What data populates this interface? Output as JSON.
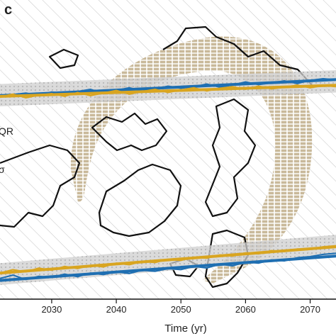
{
  "figure": {
    "panel_label": "c",
    "legend_fragments": [
      "QR",
      "σ"
    ]
  },
  "colors": {
    "blue": "#1f6fb2",
    "gold": "#d9a520",
    "band_gray": "#cfcfcf",
    "stipple": "#bdbdbd",
    "map_fill": "#c9b99a",
    "hatch": "#c8c8c8",
    "coast": "#111111"
  },
  "chart_data": {
    "type": "line",
    "xlabel": "Time (yr)",
    "ylabel": "",
    "ticks": [
      "2030",
      "2040",
      "2050",
      "2060",
      "2070"
    ],
    "tick_values": [
      2030,
      2040,
      2050,
      2060,
      2070
    ],
    "xlim": [
      2022,
      2074
    ],
    "years": [
      2022,
      2024,
      2026,
      2028,
      2030,
      2032,
      2034,
      2036,
      2038,
      2040,
      2042,
      2044,
      2046,
      2048,
      2050,
      2052,
      2054,
      2056,
      2058,
      2060,
      2062,
      2064,
      2066,
      2068,
      2070,
      2072,
      2074
    ],
    "panels": [
      {
        "id": "upper",
        "ylim": [
          0,
          1
        ],
        "series": [
          {
            "color_key": "blue",
            "values": [
              0.4,
              0.42,
              0.45,
              0.41,
              0.47,
              0.44,
              0.48,
              0.52,
              0.45,
              0.5,
              0.55,
              0.49,
              0.53,
              0.58,
              0.54,
              0.57,
              0.62,
              0.56,
              0.6,
              0.66,
              0.61,
              0.64,
              0.68,
              0.63,
              0.69,
              0.72,
              0.7
            ]
          },
          {
            "color_key": "gold",
            "values": [
              0.38,
              0.43,
              0.36,
              0.41,
              0.44,
              0.39,
              0.46,
              0.4,
              0.45,
              0.5,
              0.43,
              0.48,
              0.52,
              0.46,
              0.51,
              0.55,
              0.49,
              0.54,
              0.57,
              0.52,
              0.58,
              0.53,
              0.56,
              0.6,
              0.55,
              0.59,
              0.57
            ]
          }
        ],
        "band_low": [
          0.2,
          0.21,
          0.22,
          0.23,
          0.24,
          0.25,
          0.26,
          0.27,
          0.28,
          0.29,
          0.3,
          0.31,
          0.32,
          0.33,
          0.34,
          0.35,
          0.36,
          0.37,
          0.38,
          0.39,
          0.4,
          0.41,
          0.42,
          0.43,
          0.44,
          0.45,
          0.46
        ],
        "band_high": [
          0.62,
          0.63,
          0.64,
          0.65,
          0.66,
          0.67,
          0.68,
          0.69,
          0.7,
          0.71,
          0.72,
          0.73,
          0.74,
          0.75,
          0.76,
          0.77,
          0.78,
          0.79,
          0.8,
          0.81,
          0.82,
          0.83,
          0.84,
          0.85,
          0.86,
          0.87,
          0.88
        ]
      },
      {
        "id": "lower",
        "ylim": [
          0,
          1
        ],
        "series": [
          {
            "color_key": "blue",
            "values": [
              0.12,
              0.18,
              0.1,
              0.16,
              0.14,
              0.2,
              0.15,
              0.22,
              0.19,
              0.24,
              0.21,
              0.27,
              0.25,
              0.3,
              0.28,
              0.34,
              0.31,
              0.38,
              0.35,
              0.42,
              0.4,
              0.46,
              0.44,
              0.5,
              0.52,
              0.56,
              0.58
            ]
          },
          {
            "color_key": "gold",
            "values": [
              0.22,
              0.28,
              0.24,
              0.31,
              0.27,
              0.34,
              0.3,
              0.36,
              0.33,
              0.4,
              0.37,
              0.43,
              0.41,
              0.47,
              0.45,
              0.51,
              0.49,
              0.55,
              0.53,
              0.59,
              0.57,
              0.63,
              0.61,
              0.66,
              0.65,
              0.7,
              0.72
            ]
          }
        ],
        "band_low": [
          0.0,
          0.02,
          0.04,
          0.06,
          0.08,
          0.1,
          0.12,
          0.14,
          0.16,
          0.18,
          0.2,
          0.22,
          0.24,
          0.26,
          0.28,
          0.3,
          0.32,
          0.34,
          0.36,
          0.38,
          0.4,
          0.42,
          0.44,
          0.46,
          0.48,
          0.5,
          0.52
        ],
        "band_high": [
          0.4,
          0.42,
          0.44,
          0.46,
          0.48,
          0.5,
          0.52,
          0.54,
          0.56,
          0.58,
          0.6,
          0.62,
          0.64,
          0.66,
          0.68,
          0.7,
          0.72,
          0.74,
          0.76,
          0.78,
          0.8,
          0.82,
          0.84,
          0.86,
          0.88,
          0.9,
          0.92
        ]
      }
    ]
  }
}
